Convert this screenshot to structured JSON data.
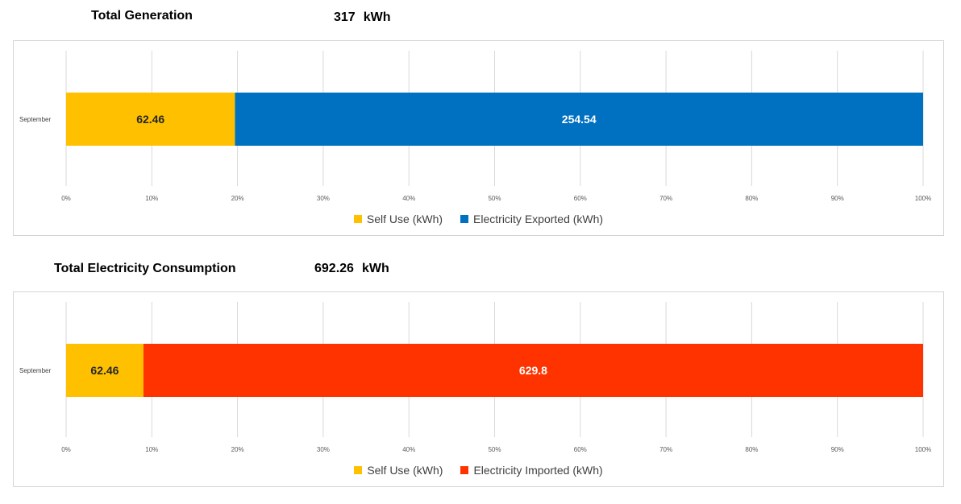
{
  "charts": [
    {
      "title": "Total Generation",
      "total": "317",
      "unit": "kWh",
      "chart_data": {
        "type": "bar",
        "orientation": "horizontal",
        "stacked": "percent",
        "categories": [
          "September"
        ],
        "series": [
          {
            "name": "Self Use (kWh)",
            "values": [
              62.46
            ],
            "label": "62.46",
            "color": "#FFC000",
            "label_color": "#262626"
          },
          {
            "name": "Electricity Exported (kWh)",
            "values": [
              254.54
            ],
            "label": "254.54",
            "color": "#0070C0",
            "label_color": "#ffffff"
          }
        ],
        "xlim": [
          0,
          100
        ],
        "xticks": [
          "0%",
          "10%",
          "20%",
          "30%",
          "40%",
          "50%",
          "60%",
          "70%",
          "80%",
          "90%",
          "100%"
        ],
        "grid": true,
        "legend": "bottom"
      }
    },
    {
      "title": "Total Electricity Consumption",
      "total": "692.26",
      "unit": "kWh",
      "chart_data": {
        "type": "bar",
        "orientation": "horizontal",
        "stacked": "percent",
        "categories": [
          "September"
        ],
        "series": [
          {
            "name": "Self Use (kWh)",
            "values": [
              62.46
            ],
            "label": "62.46",
            "color": "#FFC000",
            "label_color": "#262626"
          },
          {
            "name": "Electricity Imported (kWh)",
            "values": [
              629.8
            ],
            "label": "629.8",
            "color": "#FF3300",
            "label_color": "#ffffff"
          }
        ],
        "xlim": [
          0,
          100
        ],
        "xticks": [
          "0%",
          "10%",
          "20%",
          "30%",
          "40%",
          "50%",
          "60%",
          "70%",
          "80%",
          "90%",
          "100%"
        ],
        "grid": true,
        "legend": "bottom"
      }
    }
  ]
}
